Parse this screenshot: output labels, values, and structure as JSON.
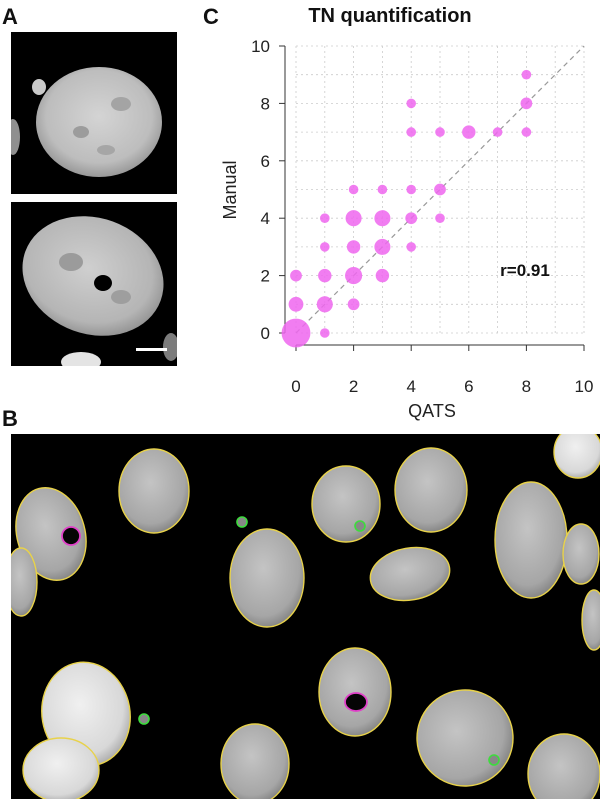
{
  "panels": {
    "a": {
      "letter": "A"
    },
    "b": {
      "letter": "B"
    },
    "c": {
      "letter": "C"
    }
  },
  "colors": {
    "background": "#000000",
    "nucleus_outline": "#e8d24a",
    "tn_outline": "#e040c8",
    "micronucleus_outline": "#3ddc3d",
    "points": "#ee66ee",
    "reference_line": "#999999",
    "grid": "#cccccc"
  },
  "chart_data": {
    "type": "scatter",
    "title": "TN quantification",
    "xlabel": "QATS",
    "ylabel": "Manual",
    "xlim": [
      0,
      10
    ],
    "ylim": [
      0,
      10
    ],
    "xticks": [
      0,
      2,
      4,
      6,
      8,
      10
    ],
    "yticks": [
      0,
      2,
      4,
      6,
      8,
      10
    ],
    "grid": true,
    "reference_line": "y = x",
    "annotation": "r=0.91",
    "point_size_meaning": "frequency",
    "points": [
      {
        "x": 0,
        "y": 0,
        "n": 10
      },
      {
        "x": 0,
        "y": 1,
        "n": 4
      },
      {
        "x": 0,
        "y": 2,
        "n": 2
      },
      {
        "x": 1,
        "y": 0,
        "n": 1
      },
      {
        "x": 1,
        "y": 1,
        "n": 5
      },
      {
        "x": 1,
        "y": 2,
        "n": 3
      },
      {
        "x": 1,
        "y": 3,
        "n": 1
      },
      {
        "x": 1,
        "y": 4,
        "n": 1
      },
      {
        "x": 2,
        "y": 1,
        "n": 2
      },
      {
        "x": 2,
        "y": 2,
        "n": 6
      },
      {
        "x": 2,
        "y": 3,
        "n": 3
      },
      {
        "x": 2,
        "y": 4,
        "n": 5
      },
      {
        "x": 2,
        "y": 5,
        "n": 1
      },
      {
        "x": 3,
        "y": 2,
        "n": 3
      },
      {
        "x": 3,
        "y": 3,
        "n": 5
      },
      {
        "x": 3,
        "y": 4,
        "n": 5
      },
      {
        "x": 3,
        "y": 5,
        "n": 1
      },
      {
        "x": 4,
        "y": 3,
        "n": 1
      },
      {
        "x": 4,
        "y": 4,
        "n": 2
      },
      {
        "x": 4,
        "y": 5,
        "n": 1
      },
      {
        "x": 4,
        "y": 7,
        "n": 1
      },
      {
        "x": 4,
        "y": 8,
        "n": 1
      },
      {
        "x": 5,
        "y": 4,
        "n": 1
      },
      {
        "x": 5,
        "y": 5,
        "n": 2
      },
      {
        "x": 5,
        "y": 7,
        "n": 1
      },
      {
        "x": 6,
        "y": 7,
        "n": 3
      },
      {
        "x": 7,
        "y": 7,
        "n": 1
      },
      {
        "x": 8,
        "y": 7,
        "n": 1
      },
      {
        "x": 8,
        "y": 8,
        "n": 2
      },
      {
        "x": 8,
        "y": 9,
        "n": 1
      }
    ]
  }
}
